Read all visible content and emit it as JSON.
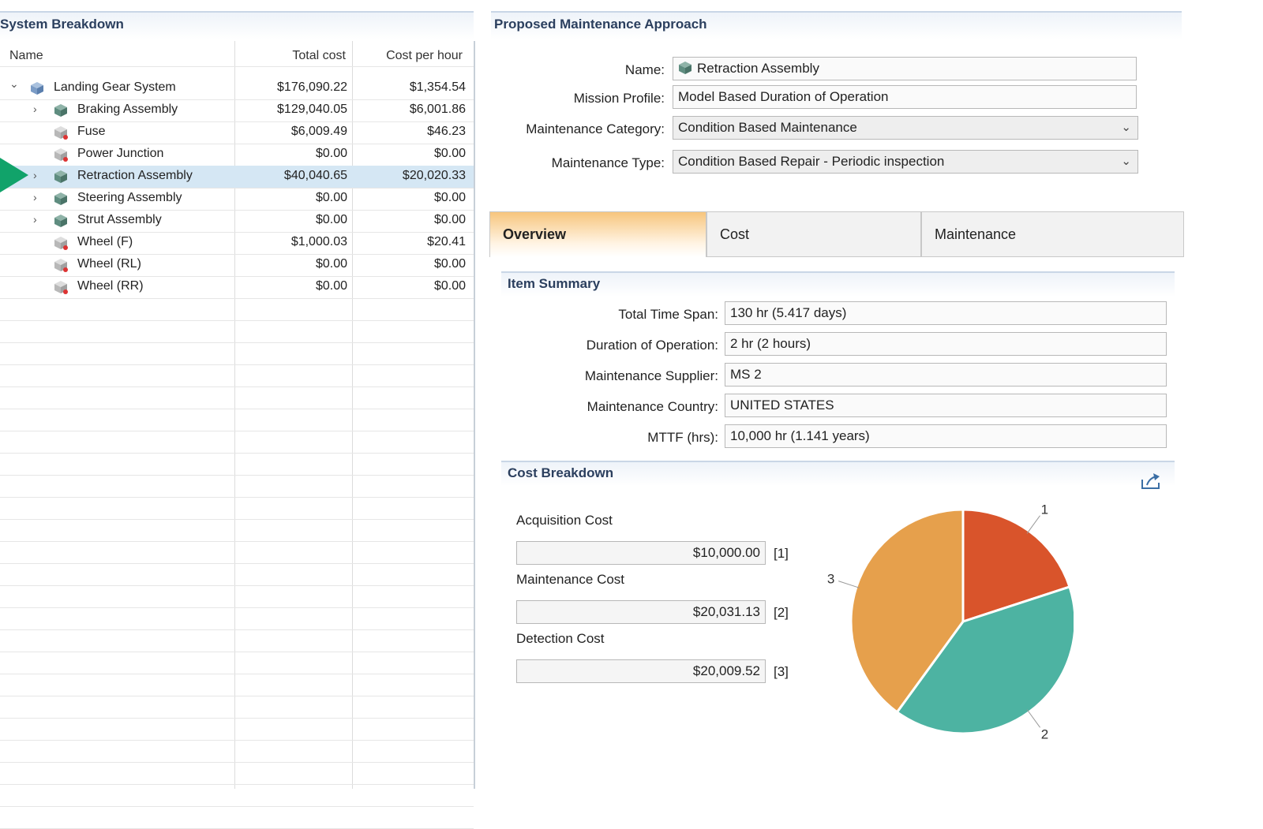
{
  "system_breakdown": {
    "title": "System Breakdown",
    "columns": {
      "name": "Name",
      "total_cost": "Total cost",
      "cost_per_hour": "Cost per hour"
    },
    "rows": [
      {
        "name": "Landing Gear System",
        "total_cost": "$176,090.22",
        "cost_per_hour": "$1,354.54"
      },
      {
        "name": "Braking Assembly",
        "total_cost": "$129,040.05",
        "cost_per_hour": "$6,001.86"
      },
      {
        "name": "Fuse",
        "total_cost": "$6,009.49",
        "cost_per_hour": "$46.23"
      },
      {
        "name": "Power Junction",
        "total_cost": "$0.00",
        "cost_per_hour": "$0.00"
      },
      {
        "name": "Retraction Assembly",
        "total_cost": "$40,040.65",
        "cost_per_hour": "$20,020.33"
      },
      {
        "name": "Steering Assembly",
        "total_cost": "$0.00",
        "cost_per_hour": "$0.00"
      },
      {
        "name": "Strut Assembly",
        "total_cost": "$0.00",
        "cost_per_hour": "$0.00"
      },
      {
        "name": "Wheel (F)",
        "total_cost": "$1,000.03",
        "cost_per_hour": "$20.41"
      },
      {
        "name": "Wheel (RL)",
        "total_cost": "$0.00",
        "cost_per_hour": "$0.00"
      },
      {
        "name": "Wheel (RR)",
        "total_cost": "$0.00",
        "cost_per_hour": "$0.00"
      }
    ]
  },
  "proposed": {
    "title": "Proposed Maintenance Approach",
    "name_label": "Name:",
    "name_value": "Retraction Assembly",
    "mission_label": "Mission Profile:",
    "mission_value": "Model Based Duration of Operation",
    "category_label": "Maintenance Category:",
    "category_value": "Condition Based Maintenance",
    "type_label": "Maintenance Type:",
    "type_value": "Condition Based Repair - Periodic inspection"
  },
  "tabs": [
    "Overview",
    "Cost",
    "Maintenance"
  ],
  "item_summary": {
    "title": "Item Summary",
    "fields": [
      {
        "label": "Total Time Span:",
        "value": "130 hr (5.417 days)"
      },
      {
        "label": "Duration of Operation:",
        "value": "2 hr (2 hours)"
      },
      {
        "label": "Maintenance Supplier:",
        "value": "MS 2"
      },
      {
        "label": "Maintenance Country:",
        "value": "UNITED STATES"
      },
      {
        "label": "MTTF (hrs):",
        "value": "10,000 hr (1.141 years)"
      }
    ]
  },
  "cost_breakdown": {
    "title": "Cost Breakdown",
    "items": [
      {
        "label": "Acquisition Cost",
        "value": "$10,000.00",
        "tag": "[1]"
      },
      {
        "label": "Maintenance Cost",
        "value": "$20,031.13",
        "tag": "[2]"
      },
      {
        "label": "Detection Cost",
        "value": "$20,009.52",
        "tag": "[3]"
      }
    ]
  },
  "chart_data": {
    "type": "pie",
    "categories": [
      "1",
      "2",
      "3"
    ],
    "values": [
      10000.0,
      20031.13,
      20009.52
    ],
    "colors": [
      "#d9542b",
      "#4db3a2",
      "#e6a04c"
    ]
  },
  "colors": {
    "selection": "#d5e7f4",
    "arrow": "#11a36a",
    "header_text": "#2b3f5e",
    "tab_active": "#f7c57d"
  }
}
